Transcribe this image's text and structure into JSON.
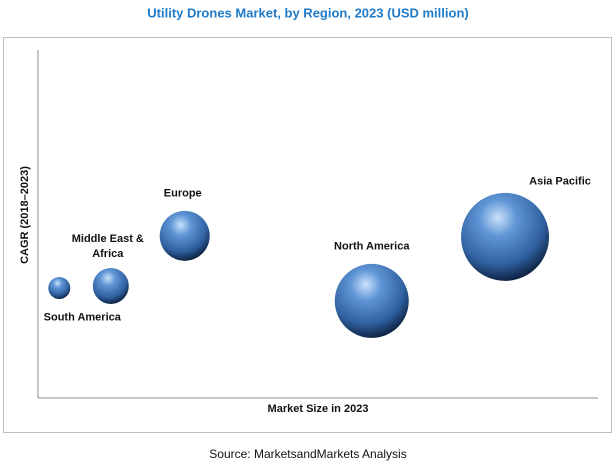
{
  "chart_data": {
    "type": "bubble",
    "title": "Utility Drones Market, by Region, 2023 (USD million)",
    "x_label": "Market Size in 2023",
    "y_label": "CAGR (2018–2023)",
    "source": "Source: MarketsandMarkets Analysis",
    "xlim": [
      0,
      100
    ],
    "ylim": [
      0,
      100
    ],
    "categories": [
      "South America",
      "Middle East & Africa",
      "Europe",
      "North America",
      "Asia Pacific"
    ],
    "x": [
      3.8,
      13.0,
      26.2,
      59.6,
      83.4
    ],
    "values": [
      31.6,
      32.2,
      46.6,
      27.9,
      46.3
    ],
    "sizes": [
      11,
      18,
      25,
      37,
      44
    ],
    "color": "#2f5f9e"
  }
}
